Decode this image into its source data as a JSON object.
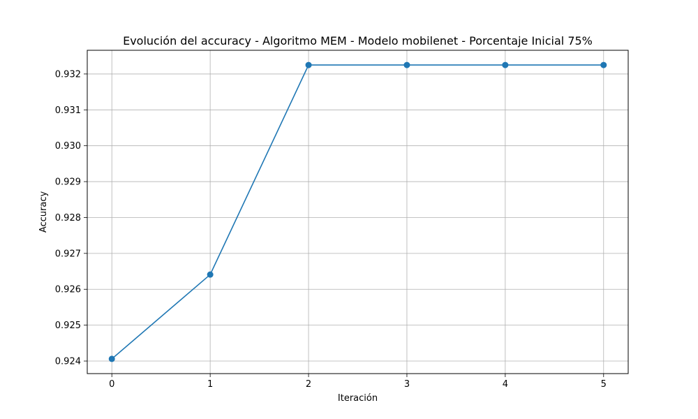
{
  "chart_data": {
    "type": "line",
    "title": "Evolución del accuracy - Algoritmo MEM - Modelo mobilenet - Porcentaje Inicial 75%",
    "xlabel": "Iteración",
    "ylabel": "Accuracy",
    "x": [
      0,
      1,
      2,
      3,
      4,
      5
    ],
    "series": [
      {
        "values": [
          0.92406,
          0.92641,
          0.93225,
          0.93225,
          0.93225,
          0.93225
        ],
        "color": "#1f77b4"
      }
    ],
    "xticks": [
      "0",
      "1",
      "2",
      "3",
      "4",
      "5"
    ],
    "yticks": [
      "0.924",
      "0.925",
      "0.926",
      "0.927",
      "0.928",
      "0.929",
      "0.930",
      "0.931",
      "0.932"
    ],
    "xlim": [
      -0.25,
      5.25
    ],
    "ylim": [
      0.92365,
      0.93266
    ],
    "grid": true,
    "marker": "circle"
  }
}
